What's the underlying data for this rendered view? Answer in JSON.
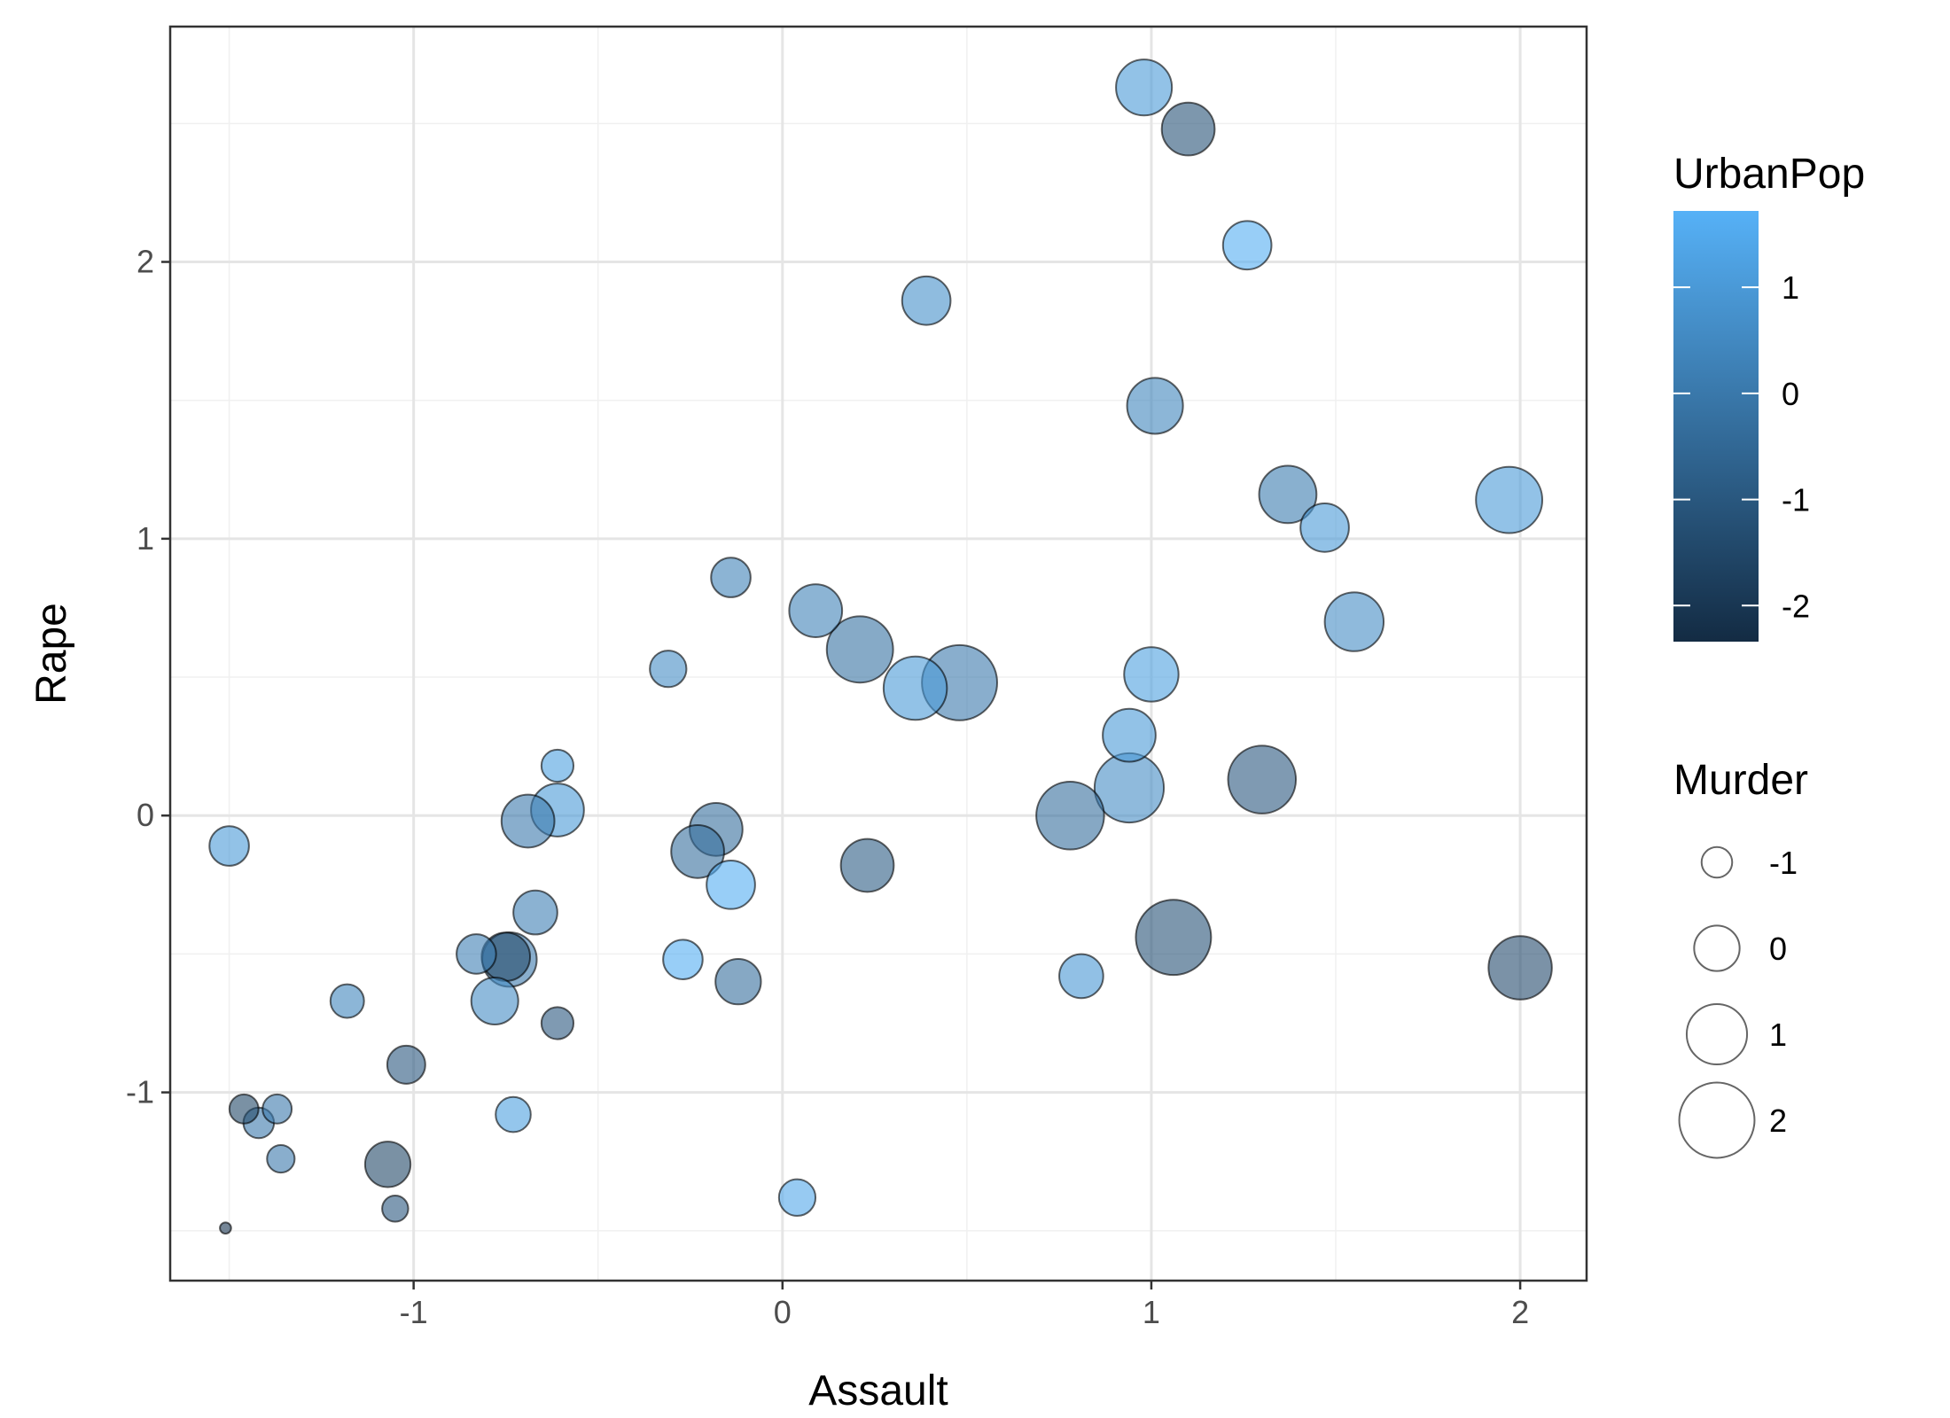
{
  "chart_data": {
    "type": "scatter",
    "xlabel": "Assault",
    "ylabel": "Rape",
    "xlim": [
      -1.66,
      2.18
    ],
    "ylim": [
      -1.68,
      2.85
    ],
    "x_ticks": [
      -1,
      0,
      1,
      2
    ],
    "x_tick_labels": [
      "-1",
      "0",
      "1",
      "2"
    ],
    "y_ticks": [
      -1,
      0,
      1,
      2
    ],
    "y_tick_labels": [
      "-1",
      "0",
      "1",
      "2"
    ],
    "grid": true,
    "color_legend": {
      "title": "UrbanPop",
      "ticks": [
        1,
        0,
        -1,
        -2
      ],
      "tick_labels": [
        "1",
        "0",
        "-1",
        "-2"
      ],
      "range": [
        -2.34,
        1.72
      ],
      "low_color": "#132B43",
      "high_color": "#56B1F7"
    },
    "size_legend": {
      "title": "Murder",
      "values": [
        -1,
        0,
        1,
        2
      ],
      "labels": [
        "-1",
        "0",
        "1",
        "2"
      ]
    },
    "points": [
      {
        "x": 0.98,
        "y": 2.63,
        "urbanpop": 1.0,
        "murder": 0.7
      },
      {
        "x": 1.1,
        "y": 2.48,
        "urbanpop": -1.2,
        "murder": 0.5
      },
      {
        "x": 1.26,
        "y": 2.06,
        "urbanpop": 1.6,
        "murder": 0.2
      },
      {
        "x": 0.39,
        "y": 1.86,
        "urbanpop": 0.7,
        "murder": 0.2
      },
      {
        "x": 1.01,
        "y": 1.48,
        "urbanpop": 0.4,
        "murder": 0.7
      },
      {
        "x": 1.37,
        "y": 1.16,
        "urbanpop": 0.1,
        "murder": 0.8
      },
      {
        "x": 1.97,
        "y": 1.14,
        "urbanpop": 1.0,
        "murder": 1.4
      },
      {
        "x": 1.47,
        "y": 1.04,
        "urbanpop": 1.0,
        "murder": 0.2
      },
      {
        "x": -0.14,
        "y": 0.86,
        "urbanpop": 0.3,
        "murder": -0.4
      },
      {
        "x": 0.09,
        "y": 0.74,
        "urbanpop": 0.3,
        "murder": 0.5
      },
      {
        "x": 1.55,
        "y": 0.7,
        "urbanpop": 0.6,
        "murder": 0.9
      },
      {
        "x": 0.21,
        "y": 0.6,
        "urbanpop": -0.2,
        "murder": 1.4
      },
      {
        "x": -0.31,
        "y": 0.53,
        "urbanpop": 0.6,
        "murder": -0.6
      },
      {
        "x": 1.0,
        "y": 0.51,
        "urbanpop": 1.2,
        "murder": 0.6
      },
      {
        "x": 0.48,
        "y": 0.48,
        "urbanpop": 0.0,
        "murder": 2.0
      },
      {
        "x": 0.36,
        "y": 0.46,
        "urbanpop": 1.0,
        "murder": 1.2
      },
      {
        "x": 0.94,
        "y": 0.29,
        "urbanpop": 1.0,
        "murder": 0.5
      },
      {
        "x": -0.61,
        "y": 0.18,
        "urbanpop": 1.2,
        "murder": -0.9
      },
      {
        "x": 1.3,
        "y": 0.13,
        "urbanpop": -1.0,
        "murder": 1.5
      },
      {
        "x": 0.94,
        "y": 0.1,
        "urbanpop": 0.6,
        "murder": 1.6
      },
      {
        "x": -0.61,
        "y": 0.02,
        "urbanpop": 1.0,
        "murder": 0.5
      },
      {
        "x": -0.69,
        "y": -0.02,
        "urbanpop": 0.0,
        "murder": 0.5
      },
      {
        "x": 0.78,
        "y": 0.0,
        "urbanpop": -0.3,
        "murder": 1.5
      },
      {
        "x": -0.18,
        "y": -0.05,
        "urbanpop": -0.3,
        "murder": 0.5
      },
      {
        "x": -0.23,
        "y": -0.13,
        "urbanpop": -0.3,
        "murder": 0.5
      },
      {
        "x": -1.5,
        "y": -0.11,
        "urbanpop": 1.0,
        "murder": -0.4
      },
      {
        "x": 0.23,
        "y": -0.18,
        "urbanpop": -0.9,
        "murder": 0.5
      },
      {
        "x": -0.14,
        "y": -0.25,
        "urbanpop": 1.6,
        "murder": 0.2
      },
      {
        "x": -0.67,
        "y": -0.35,
        "urbanpop": 0.2,
        "murder": -0.1
      },
      {
        "x": 1.06,
        "y": -0.44,
        "urbanpop": -1.2,
        "murder": 2.0
      },
      {
        "x": -0.83,
        "y": -0.5,
        "urbanpop": 0.2,
        "murder": -0.4
      },
      {
        "x": -0.74,
        "y": -0.52,
        "urbanpop": 0.0,
        "murder": 0.6
      },
      {
        "x": -0.75,
        "y": -0.51,
        "urbanpop": -1.5,
        "murder": 0.2
      },
      {
        "x": -0.27,
        "y": -0.52,
        "urbanpop": 1.6,
        "murder": -0.4
      },
      {
        "x": 2.0,
        "y": -0.55,
        "urbanpop": -1.4,
        "murder": 1.2
      },
      {
        "x": 0.81,
        "y": -0.58,
        "urbanpop": 0.9,
        "murder": -0.1
      },
      {
        "x": -0.12,
        "y": -0.6,
        "urbanpop": -0.3,
        "murder": 0.0
      },
      {
        "x": -1.18,
        "y": -0.67,
        "urbanpop": 0.4,
        "murder": -0.8
      },
      {
        "x": -0.78,
        "y": -0.67,
        "urbanpop": 0.6,
        "murder": 0.1
      },
      {
        "x": -0.61,
        "y": -0.75,
        "urbanpop": -1.0,
        "murder": -0.9
      },
      {
        "x": -1.02,
        "y": -0.9,
        "urbanpop": -1.0,
        "murder": -0.5
      },
      {
        "x": -1.46,
        "y": -1.06,
        "urbanpop": -1.5,
        "murder": -1.1
      },
      {
        "x": -1.37,
        "y": -1.06,
        "urbanpop": 0.0,
        "murder": -1.1
      },
      {
        "x": -0.73,
        "y": -1.08,
        "urbanpop": 1.2,
        "murder": -0.7
      },
      {
        "x": -1.42,
        "y": -1.11,
        "urbanpop": 0.0,
        "murder": -1.0
      },
      {
        "x": -1.36,
        "y": -1.24,
        "urbanpop": 0.0,
        "murder": -1.2
      },
      {
        "x": -1.07,
        "y": -1.26,
        "urbanpop": -1.5,
        "murder": 0.0
      },
      {
        "x": 0.04,
        "y": -1.38,
        "urbanpop": 1.4,
        "murder": -0.6
      },
      {
        "x": -1.05,
        "y": -1.42,
        "urbanpop": -1.0,
        "murder": -1.3
      },
      {
        "x": -1.51,
        "y": -1.49,
        "urbanpop": -2.0,
        "murder": -2.3
      }
    ]
  }
}
